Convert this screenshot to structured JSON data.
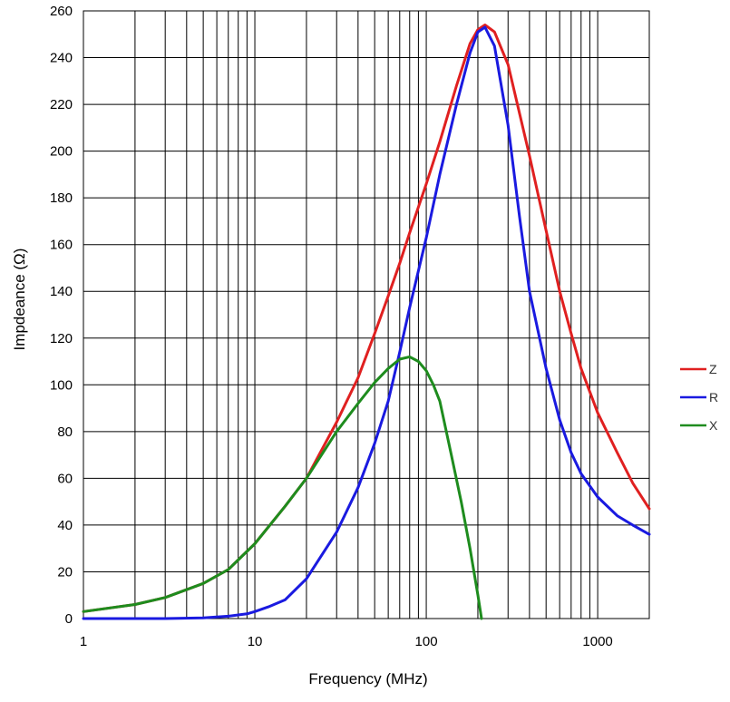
{
  "chart_data": {
    "type": "line",
    "title": "",
    "xlabel": "Frequency (MHz)",
    "ylabel": "Impdeance (Ω)",
    "xscale": "log",
    "xlim": [
      1,
      2000
    ],
    "ylim": [
      0,
      260
    ],
    "grid": true,
    "legend_position": "right",
    "x_ticks": [
      {
        "value": 1,
        "label": "1"
      },
      {
        "value": 10,
        "label": "10"
      },
      {
        "value": 100,
        "label": "100"
      },
      {
        "value": 1000,
        "label": "1000"
      }
    ],
    "y_ticks": [
      {
        "value": 0,
        "label": "0"
      },
      {
        "value": 20,
        "label": "20"
      },
      {
        "value": 40,
        "label": "40"
      },
      {
        "value": 60,
        "label": "60"
      },
      {
        "value": 80,
        "label": "80"
      },
      {
        "value": 100,
        "label": "100"
      },
      {
        "value": 120,
        "label": "120"
      },
      {
        "value": 140,
        "label": "140"
      },
      {
        "value": 160,
        "label": "160"
      },
      {
        "value": 180,
        "label": "180"
      },
      {
        "value": 200,
        "label": "200"
      },
      {
        "value": 220,
        "label": "220"
      },
      {
        "value": 240,
        "label": "240"
      },
      {
        "value": 260,
        "label": "260"
      }
    ],
    "series": [
      {
        "name": "Z",
        "color": "#e02020",
        "points": [
          [
            1,
            3
          ],
          [
            2,
            6
          ],
          [
            3,
            9
          ],
          [
            5,
            15
          ],
          [
            7,
            21
          ],
          [
            10,
            32
          ],
          [
            15,
            48
          ],
          [
            20,
            60
          ],
          [
            30,
            84
          ],
          [
            40,
            103
          ],
          [
            50,
            122
          ],
          [
            60,
            138
          ],
          [
            70,
            152
          ],
          [
            80,
            165
          ],
          [
            100,
            186
          ],
          [
            120,
            204
          ],
          [
            150,
            228
          ],
          [
            180,
            246
          ],
          [
            200,
            252
          ],
          [
            220,
            254
          ],
          [
            250,
            251
          ],
          [
            300,
            237
          ],
          [
            400,
            198
          ],
          [
            500,
            166
          ],
          [
            600,
            140
          ],
          [
            700,
            122
          ],
          [
            800,
            107
          ],
          [
            1000,
            88
          ],
          [
            1300,
            71
          ],
          [
            1600,
            58
          ],
          [
            2000,
            47
          ]
        ]
      },
      {
        "name": "R",
        "color": "#1a1ae0",
        "points": [
          [
            1,
            0
          ],
          [
            3,
            0
          ],
          [
            5,
            0.3
          ],
          [
            7,
            1
          ],
          [
            9,
            2
          ],
          [
            10,
            3
          ],
          [
            12,
            5
          ],
          [
            15,
            8
          ],
          [
            20,
            17
          ],
          [
            30,
            37
          ],
          [
            40,
            56
          ],
          [
            50,
            75
          ],
          [
            60,
            93
          ],
          [
            70,
            114
          ],
          [
            80,
            133
          ],
          [
            100,
            163
          ],
          [
            120,
            190
          ],
          [
            150,
            220
          ],
          [
            180,
            242
          ],
          [
            200,
            251
          ],
          [
            220,
            253
          ],
          [
            250,
            245
          ],
          [
            300,
            211
          ],
          [
            350,
            172
          ],
          [
            400,
            140
          ],
          [
            500,
            107
          ],
          [
            600,
            85
          ],
          [
            700,
            71
          ],
          [
            800,
            62
          ],
          [
            1000,
            52
          ],
          [
            1300,
            44
          ],
          [
            1600,
            40
          ],
          [
            2000,
            36
          ]
        ]
      },
      {
        "name": "X",
        "color": "#1e8c1e",
        "points": [
          [
            1,
            3
          ],
          [
            2,
            6
          ],
          [
            3,
            9
          ],
          [
            5,
            15
          ],
          [
            7,
            21
          ],
          [
            10,
            32
          ],
          [
            15,
            48
          ],
          [
            20,
            60
          ],
          [
            30,
            80
          ],
          [
            40,
            92
          ],
          [
            50,
            101
          ],
          [
            60,
            107
          ],
          [
            70,
            111
          ],
          [
            80,
            112
          ],
          [
            90,
            110
          ],
          [
            100,
            106
          ],
          [
            110,
            100
          ],
          [
            120,
            93
          ],
          [
            140,
            70
          ],
          [
            160,
            50
          ],
          [
            180,
            30
          ],
          [
            200,
            10
          ],
          [
            210,
            0
          ]
        ]
      }
    ]
  }
}
